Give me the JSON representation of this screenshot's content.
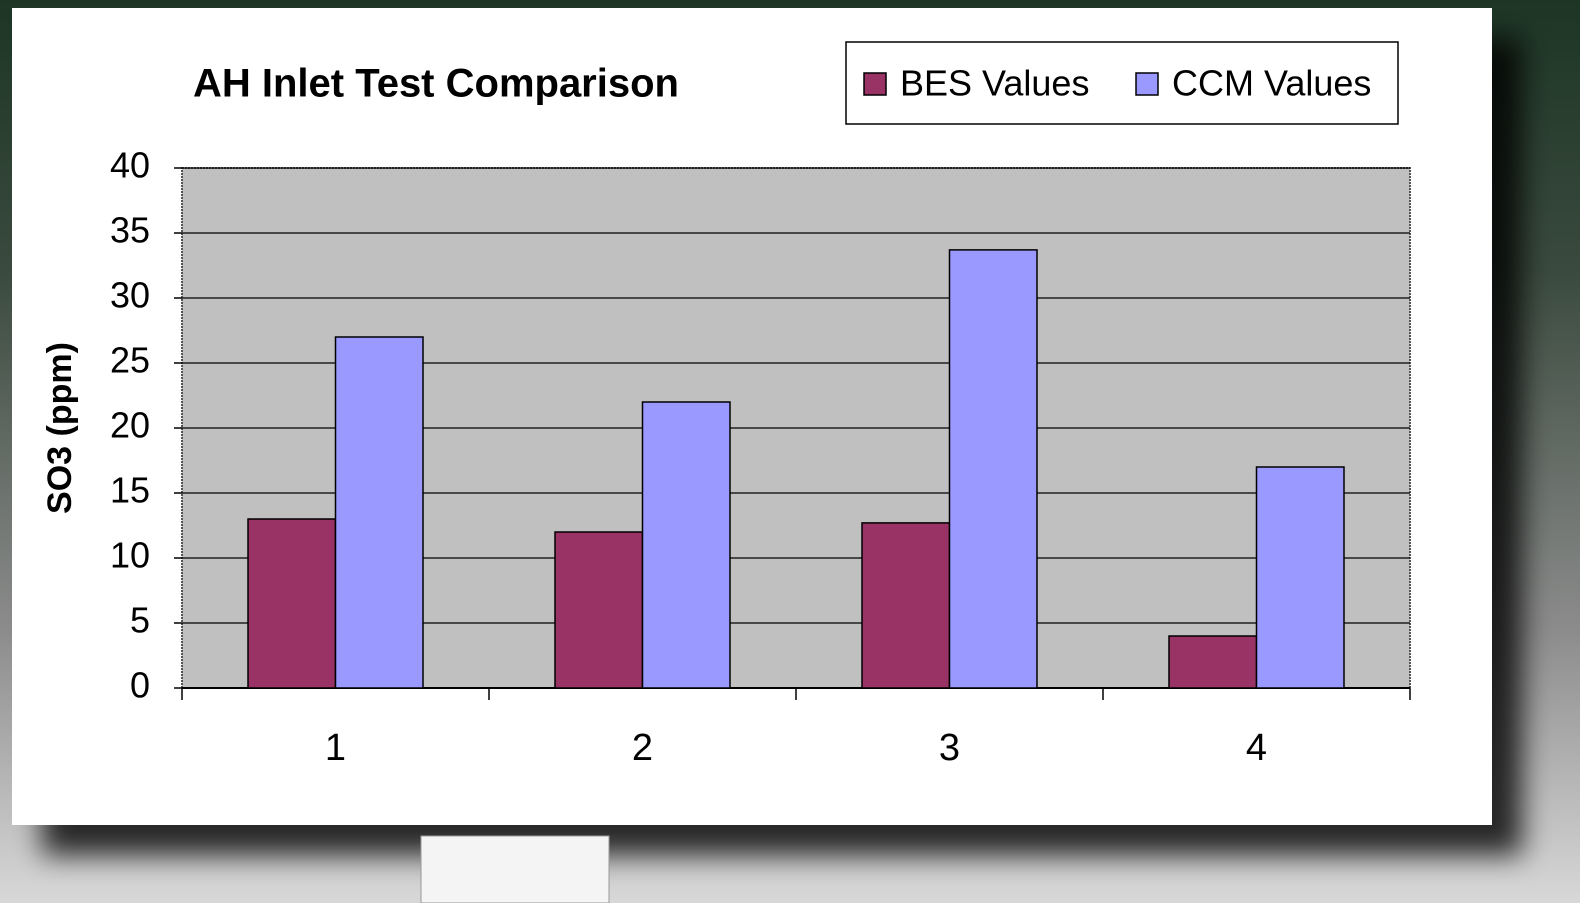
{
  "chart_data": {
    "type": "bar",
    "title": "AH Inlet Test Comparison",
    "y_label": "SO3 (ppm)",
    "categories": [
      "1",
      "2",
      "3",
      "4"
    ],
    "series": [
      {
        "name": "BES Values",
        "color": "#993366",
        "values": [
          13,
          12,
          12.7,
          4
        ]
      },
      {
        "name": "CCM Values",
        "color": "#9999ff",
        "values": [
          27,
          22,
          33.7,
          17
        ]
      }
    ],
    "ylim": [
      0,
      40
    ],
    "yticks": [
      0,
      5,
      10,
      15,
      20,
      25,
      30,
      35,
      40
    ],
    "grid": true,
    "legend": "top-right",
    "plot_background": "#c0c0c0"
  }
}
